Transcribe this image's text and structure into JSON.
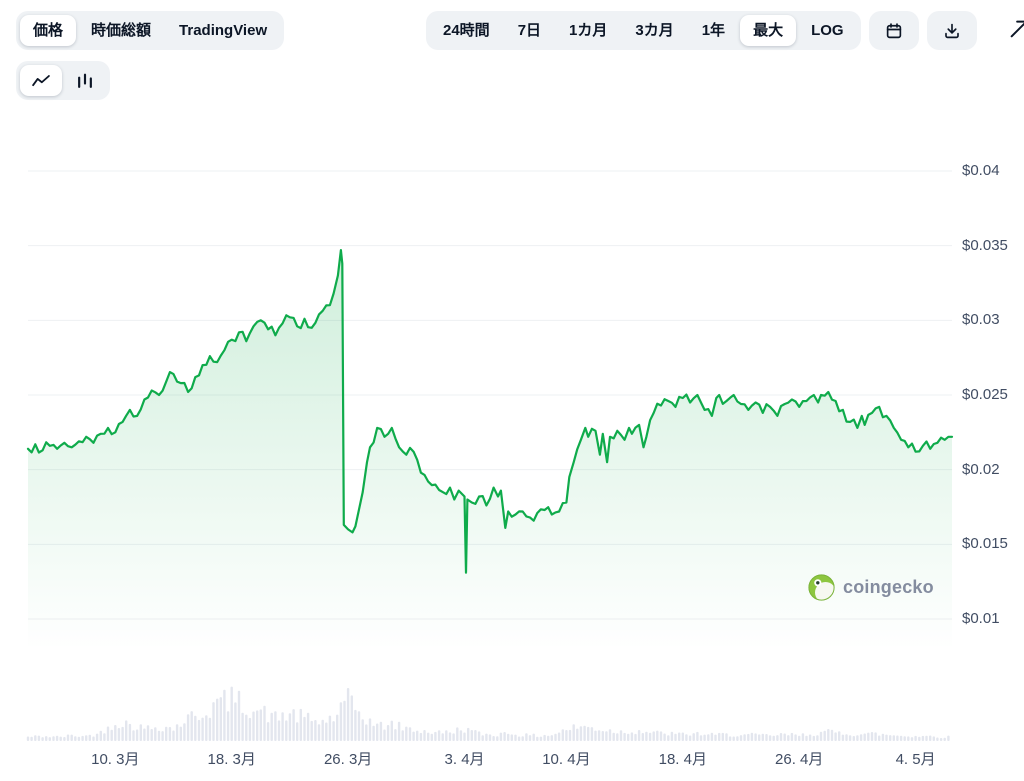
{
  "header": {
    "metric_tabs": [
      {
        "label": "価格",
        "selected": true
      },
      {
        "label": "時価総額",
        "selected": false
      },
      {
        "label": "TradingView",
        "selected": false
      }
    ],
    "range_tabs": [
      {
        "label": "24時間",
        "selected": false
      },
      {
        "label": "7日",
        "selected": false
      },
      {
        "label": "1カ月",
        "selected": false
      },
      {
        "label": "3カ月",
        "selected": false
      },
      {
        "label": "1年",
        "selected": false
      },
      {
        "label": "最大",
        "selected": true
      },
      {
        "label": "LOG",
        "selected": false
      }
    ],
    "icons": [
      "calendar-icon",
      "download-icon",
      "expand-icon",
      "line-chart-icon",
      "bar-chart-icon"
    ]
  },
  "watermark": {
    "text": "coingecko"
  },
  "colors": {
    "line": "#0fab4b",
    "fill_top": "rgba(15,171,75,0.20)",
    "fill_bottom": "rgba(15,171,75,0)",
    "grid": "#eef0f3",
    "volume": "#e3e6ee",
    "axis_text": "#414d63"
  },
  "chart_data": {
    "type": "area",
    "title": "",
    "x_unit": "days (0 = Mar 4)",
    "x_range_days": [
      0,
      63.5
    ],
    "ylim": [
      0.01,
      0.04
    ],
    "y_ticks": [
      {
        "label": "$0.04",
        "value": 0.04
      },
      {
        "label": "$0.035",
        "value": 0.035
      },
      {
        "label": "$0.03",
        "value": 0.03
      },
      {
        "label": "$0.025",
        "value": 0.025
      },
      {
        "label": "$0.02",
        "value": 0.02
      },
      {
        "label": "$0.015",
        "value": 0.015
      },
      {
        "label": "$0.01",
        "value": 0.01
      }
    ],
    "x_ticks": [
      {
        "label": "10. 3月",
        "day": 6
      },
      {
        "label": "18. 3月",
        "day": 14
      },
      {
        "label": "26. 3月",
        "day": 22
      },
      {
        "label": "3. 4月",
        "day": 30
      },
      {
        "label": "10. 4月",
        "day": 37
      },
      {
        "label": "18. 4月",
        "day": 45
      },
      {
        "label": "26. 4月",
        "day": 53
      },
      {
        "label": "4. 5月",
        "day": 61
      }
    ],
    "series": [
      {
        "name": "price_usd",
        "color": "#0fab4b",
        "points": [
          [
            0,
            0.0214
          ],
          [
            0.5,
            0.0217
          ],
          [
            1,
            0.0213
          ],
          [
            1.5,
            0.0216
          ],
          [
            2,
            0.0214
          ],
          [
            2.5,
            0.0218
          ],
          [
            3,
            0.0215
          ],
          [
            3.5,
            0.0219
          ],
          [
            4,
            0.0222
          ],
          [
            4.5,
            0.0218
          ],
          [
            5,
            0.0224
          ],
          [
            5.5,
            0.0228
          ],
          [
            6,
            0.0225
          ],
          [
            6.5,
            0.0232
          ],
          [
            7,
            0.024
          ],
          [
            7.5,
            0.0236
          ],
          [
            8,
            0.0247
          ],
          [
            8.5,
            0.0253
          ],
          [
            9,
            0.025
          ],
          [
            9.5,
            0.0259
          ],
          [
            10,
            0.0264
          ],
          [
            10.5,
            0.0258
          ],
          [
            11,
            0.0252
          ],
          [
            11.5,
            0.0262
          ],
          [
            12,
            0.027
          ],
          [
            12.5,
            0.0276
          ],
          [
            13,
            0.0272
          ],
          [
            13.5,
            0.028
          ],
          [
            14,
            0.0287
          ],
          [
            14.5,
            0.0292
          ],
          [
            15,
            0.0286
          ],
          [
            15.5,
            0.0296
          ],
          [
            16,
            0.03
          ],
          [
            16.5,
            0.0294
          ],
          [
            17,
            0.029
          ],
          [
            17.5,
            0.0298
          ],
          [
            18,
            0.0302
          ],
          [
            18.5,
            0.0296
          ],
          [
            19,
            0.0301
          ],
          [
            19.5,
            0.0295
          ],
          [
            20,
            0.0304
          ],
          [
            20.5,
            0.031
          ],
          [
            21,
            0.0318
          ],
          [
            21.3,
            0.033
          ],
          [
            21.5,
            0.0347
          ],
          [
            21.6,
            0.0338
          ],
          [
            21.7,
            0.0163
          ],
          [
            22,
            0.016
          ],
          [
            22.3,
            0.0158
          ],
          [
            22.5,
            0.0162
          ],
          [
            23,
            0.0185
          ],
          [
            23.3,
            0.0205
          ],
          [
            23.5,
            0.0215
          ],
          [
            24,
            0.0228
          ],
          [
            24.5,
            0.0222
          ],
          [
            25,
            0.0228
          ],
          [
            25.5,
            0.0215
          ],
          [
            26,
            0.021
          ],
          [
            26.5,
            0.0212
          ],
          [
            27,
            0.0198
          ],
          [
            27.5,
            0.0192
          ],
          [
            28,
            0.019
          ],
          [
            28.5,
            0.0185
          ],
          [
            29,
            0.0188
          ],
          [
            29.3,
            0.018
          ],
          [
            29.6,
            0.0186
          ],
          [
            30,
            0.0182
          ],
          [
            30.1,
            0.0131
          ],
          [
            30.2,
            0.018
          ],
          [
            30.5,
            0.0178
          ],
          [
            31,
            0.0182
          ],
          [
            31.5,
            0.0176
          ],
          [
            32,
            0.0188
          ],
          [
            32.3,
            0.0182
          ],
          [
            32.5,
            0.0186
          ],
          [
            32.8,
            0.0161
          ],
          [
            33,
            0.0172
          ],
          [
            33.5,
            0.017
          ],
          [
            34,
            0.0172
          ],
          [
            34.5,
            0.0168
          ],
          [
            35,
            0.0171
          ],
          [
            35.5,
            0.0173
          ],
          [
            36,
            0.017
          ],
          [
            36.5,
            0.0172
          ],
          [
            37,
            0.0178
          ],
          [
            37.2,
            0.0195
          ],
          [
            37.5,
            0.0205
          ],
          [
            38,
            0.022
          ],
          [
            38.3,
            0.0228
          ],
          [
            38.5,
            0.0222
          ],
          [
            39,
            0.0226
          ],
          [
            39.3,
            0.021
          ],
          [
            39.5,
            0.0224
          ],
          [
            39.8,
            0.0205
          ],
          [
            40,
            0.0222
          ],
          [
            40.5,
            0.0226
          ],
          [
            41,
            0.022
          ],
          [
            41.3,
            0.0228
          ],
          [
            41.5,
            0.0224
          ],
          [
            42,
            0.023
          ],
          [
            42.3,
            0.0215
          ],
          [
            42.5,
            0.0222
          ],
          [
            43,
            0.0238
          ],
          [
            43.5,
            0.0243
          ],
          [
            44,
            0.0246
          ],
          [
            44.5,
            0.0242
          ],
          [
            45,
            0.0248
          ],
          [
            45.5,
            0.0245
          ],
          [
            46,
            0.025
          ],
          [
            46.3,
            0.0244
          ],
          [
            46.5,
            0.024
          ],
          [
            47,
            0.0236
          ],
          [
            47.3,
            0.0248
          ],
          [
            47.5,
            0.025
          ],
          [
            48,
            0.0246
          ],
          [
            48.5,
            0.025
          ],
          [
            49,
            0.0244
          ],
          [
            49.5,
            0.024
          ],
          [
            50,
            0.0245
          ],
          [
            50.5,
            0.0238
          ],
          [
            51,
            0.0242
          ],
          [
            51.5,
            0.0236
          ],
          [
            52,
            0.0244
          ],
          [
            52.5,
            0.0247
          ],
          [
            53,
            0.0242
          ],
          [
            53.5,
            0.0246
          ],
          [
            54,
            0.025
          ],
          [
            54.3,
            0.0245
          ],
          [
            54.5,
            0.025
          ],
          [
            55,
            0.0252
          ],
          [
            55.5,
            0.0246
          ],
          [
            56,
            0.024
          ],
          [
            56.5,
            0.0232
          ],
          [
            57,
            0.0228
          ],
          [
            57.3,
            0.0236
          ],
          [
            57.5,
            0.023
          ],
          [
            58,
            0.0238
          ],
          [
            58.5,
            0.0242
          ],
          [
            59,
            0.0236
          ],
          [
            59.5,
            0.0228
          ],
          [
            60,
            0.022
          ],
          [
            60.5,
            0.0215
          ],
          [
            61,
            0.0212
          ],
          [
            61.5,
            0.0216
          ],
          [
            62,
            0.0214
          ],
          [
            62.5,
            0.0218
          ],
          [
            63,
            0.022
          ],
          [
            63.5,
            0.0222
          ]
        ]
      }
    ],
    "volume_series": {
      "name": "volume",
      "color": "#e3e6ee",
      "step_days": 1,
      "values": [
        0.1,
        0.12,
        0.1,
        0.13,
        0.12,
        0.2,
        0.45,
        0.4,
        0.3,
        0.35,
        0.3,
        0.55,
        0.65,
        0.9,
        1.0,
        0.85,
        0.7,
        0.55,
        0.65,
        0.55,
        0.45,
        0.55,
        0.95,
        0.6,
        0.35,
        0.4,
        0.3,
        0.25,
        0.2,
        0.22,
        0.3,
        0.18,
        0.15,
        0.2,
        0.14,
        0.13,
        0.15,
        0.28,
        0.35,
        0.3,
        0.25,
        0.22,
        0.25,
        0.2,
        0.18,
        0.16,
        0.18,
        0.15,
        0.16,
        0.14,
        0.15,
        0.13,
        0.16,
        0.14,
        0.18,
        0.22,
        0.2,
        0.16,
        0.18,
        0.15,
        0.13,
        0.12,
        0.12,
        0.1
      ]
    },
    "legend": [],
    "grid": "horizontal-only"
  }
}
